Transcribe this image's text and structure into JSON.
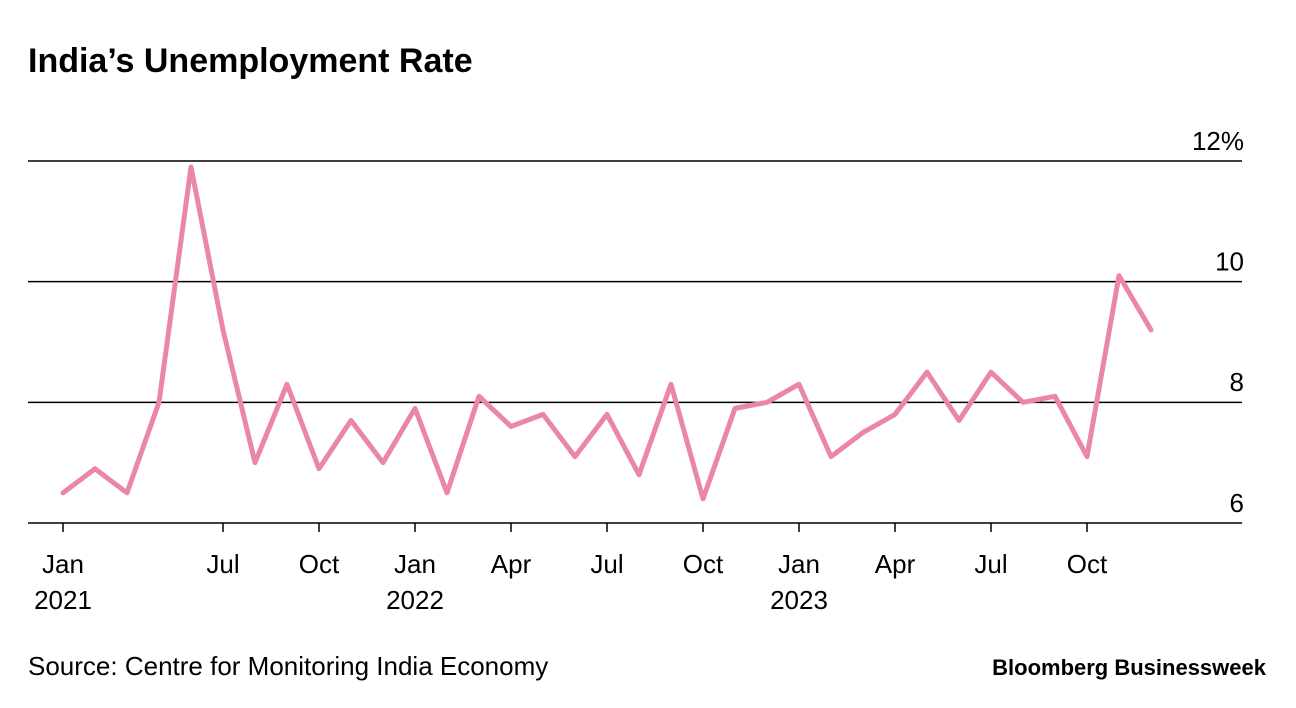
{
  "chart_data": {
    "type": "line",
    "title": "India’s Unemployment Rate",
    "categories": [
      "Jan\n2021",
      null,
      null,
      null,
      null,
      "Jul",
      null,
      null,
      "Oct",
      null,
      null,
      "Jan\n2022",
      null,
      null,
      "Apr",
      null,
      null,
      "Jul",
      null,
      null,
      "Oct",
      null,
      null,
      "Jan\n2023",
      null,
      null,
      "Apr",
      null,
      null,
      "Jul",
      null,
      null,
      "Oct",
      null,
      null
    ],
    "series": [
      {
        "color": "#ea87a4",
        "values": [
          6.5,
          6.9,
          6.5,
          8.0,
          11.9,
          9.2,
          7.0,
          8.3,
          6.9,
          7.7,
          7.0,
          7.9,
          6.5,
          8.1,
          7.6,
          7.8,
          7.1,
          7.8,
          6.8,
          8.3,
          6.4,
          7.9,
          8.0,
          8.3,
          7.1,
          7.5,
          7.8,
          8.5,
          7.7,
          8.5,
          8.0,
          8.1,
          7.1,
          10.1,
          9.2
        ]
      }
    ],
    "ylim": [
      6,
      12
    ],
    "yticks": [
      6,
      8,
      10,
      {
        "value": 12,
        "label": "12%"
      }
    ],
    "grid": true,
    "source": "Source: Centre for Monitoring India Economy",
    "brand": "Bloomberg Businessweek"
  }
}
